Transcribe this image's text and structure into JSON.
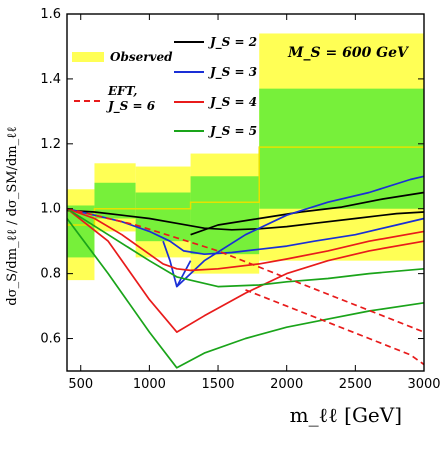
{
  "chart_data": {
    "type": "line",
    "title": "",
    "annotation": "M_S = 600 GeV",
    "xlabel": "m_ℓℓ [GeV]",
    "ylabel": "dσ_S/dm_ℓℓ / dσ_SM/dm_ℓℓ",
    "xlim": [
      400,
      3000
    ],
    "ylim": [
      0.5,
      1.6
    ],
    "xticks": [
      500,
      1000,
      1500,
      2000,
      2500,
      3000
    ],
    "yticks": [
      0.6,
      0.8,
      1.0,
      1.2,
      1.4,
      1.6
    ],
    "grid": false,
    "legend_position": "top",
    "colors": {
      "observed_outer": "#ffff55",
      "observed_inner": "#77f03a",
      "observed_line": "#e6e200",
      "J2": "#000000",
      "J3": "#1a2fd6",
      "J4": "#e81b1b",
      "J5": "#1aa41a",
      "EFT": "#e81b1b"
    },
    "legend": [
      {
        "key": "observed",
        "label": "Observed"
      },
      {
        "key": "EFT",
        "label": "EFT, J_S = 6"
      },
      {
        "key": "J2",
        "label": "J_S = 2"
      },
      {
        "key": "J3",
        "label": "J_S = 3"
      },
      {
        "key": "J4",
        "label": "J_S = 4"
      },
      {
        "key": "J5",
        "label": "J_S = 5"
      }
    ],
    "observed_bands": [
      {
        "x0": 400,
        "x1": 600,
        "outer": [
          0.78,
          1.06
        ],
        "inner": [
          0.85,
          1.01
        ],
        "central": 0.95
      },
      {
        "x0": 600,
        "x1": 900,
        "outer": [
          0.93,
          1.14
        ],
        "inner": [
          0.97,
          1.08
        ],
        "central": 1.0
      },
      {
        "x0": 900,
        "x1": 1300,
        "outer": [
          0.85,
          1.13
        ],
        "inner": [
          0.9,
          1.05
        ],
        "central": 1.0
      },
      {
        "x0": 1300,
        "x1": 1800,
        "outer": [
          0.8,
          1.17
        ],
        "inner": [
          0.86,
          1.1
        ],
        "central": 1.02
      },
      {
        "x0": 1800,
        "x1": 3000,
        "outer": [
          0.84,
          1.54
        ],
        "inner": [
          1.0,
          1.37
        ],
        "central": 1.19
      }
    ],
    "series": [
      {
        "key": "J2",
        "name": "J_S = 2",
        "style": "solid",
        "x": [
          400,
          600,
          800,
          1000,
          1200,
          1400,
          1600,
          1800,
          2000,
          2200,
          2500,
          2800,
          3000
        ],
        "y": [
          0.995,
          0.99,
          0.98,
          0.97,
          0.955,
          0.94,
          0.935,
          0.938,
          0.945,
          0.955,
          0.97,
          0.985,
          0.99
        ]
      },
      {
        "key": "J2",
        "name": "J_S = 2 (high-x branch)",
        "style": "solid",
        "x": [
          1300,
          1500,
          1800,
          2100,
          2400,
          2700,
          3000
        ],
        "y": [
          0.92,
          0.95,
          0.97,
          0.99,
          1.005,
          1.03,
          1.05
        ]
      },
      {
        "key": "J3",
        "name": "J_S = 3",
        "style": "solid",
        "x": [
          400,
          600,
          800,
          1000,
          1150,
          1250,
          1400,
          1600,
          1800,
          2000,
          2200,
          2500,
          2800,
          3000
        ],
        "y": [
          1.0,
          0.98,
          0.96,
          0.93,
          0.9,
          0.87,
          0.86,
          0.865,
          0.875,
          0.885,
          0.9,
          0.92,
          0.95,
          0.97
        ]
      },
      {
        "key": "J3",
        "name": "J_S = 3 (spike)",
        "style": "solid",
        "x": [
          1100,
          1150,
          1200,
          1250,
          1300
        ],
        "y": [
          0.9,
          0.84,
          0.76,
          0.8,
          0.84
        ]
      },
      {
        "key": "J3",
        "name": "J_S = 3 (rising branch)",
        "style": "solid",
        "x": [
          1200,
          1400,
          1700,
          2000,
          2300,
          2600,
          2900,
          3000
        ],
        "y": [
          0.76,
          0.84,
          0.92,
          0.98,
          1.02,
          1.05,
          1.09,
          1.1
        ]
      },
      {
        "key": "J4",
        "name": "J_S = 4",
        "style": "solid",
        "x": [
          400,
          600,
          800,
          1000,
          1100,
          1200,
          1300,
          1500,
          1800,
          2000,
          2300,
          2600,
          3000
        ],
        "y": [
          1.0,
          0.97,
          0.92,
          0.86,
          0.83,
          0.815,
          0.81,
          0.815,
          0.83,
          0.845,
          0.87,
          0.9,
          0.93
        ]
      },
      {
        "key": "J4",
        "name": "J_S = 4 (dip)",
        "style": "solid",
        "x": [
          400,
          700,
          1000,
          1200,
          1400,
          1700,
          2000,
          2300,
          2600,
          3000
        ],
        "y": [
          1.0,
          0.9,
          0.72,
          0.62,
          0.67,
          0.74,
          0.8,
          0.84,
          0.87,
          0.9
        ]
      },
      {
        "key": "J5",
        "name": "J_S = 5",
        "style": "solid",
        "x": [
          400,
          700,
          1000,
          1200,
          1500,
          1800,
          2000,
          2300,
          2600,
          3000
        ],
        "y": [
          1.0,
          0.92,
          0.84,
          0.79,
          0.76,
          0.765,
          0.775,
          0.785,
          0.8,
          0.815
        ]
      },
      {
        "key": "J5",
        "name": "J_S = 5 (dip)",
        "style": "solid",
        "x": [
          400,
          700,
          1000,
          1200,
          1400,
          1700,
          2000,
          2300,
          2600,
          3000
        ],
        "y": [
          0.97,
          0.8,
          0.62,
          0.51,
          0.555,
          0.6,
          0.635,
          0.66,
          0.685,
          0.71
        ]
      },
      {
        "key": "EFT",
        "name": "EFT, J_S = 6",
        "style": "dashed",
        "x": [
          400,
          600,
          900,
          1200,
          1500,
          1800,
          2100,
          2400,
          2700,
          3000
        ],
        "y": [
          1.0,
          0.98,
          0.95,
          0.91,
          0.87,
          0.82,
          0.77,
          0.72,
          0.67,
          0.62
        ]
      },
      {
        "key": "EFT",
        "name": "EFT, J_S = 6 (lower)",
        "style": "dashed",
        "x": [
          1700,
          2000,
          2300,
          2600,
          2900,
          3000
        ],
        "y": [
          0.75,
          0.7,
          0.65,
          0.6,
          0.55,
          0.52
        ]
      }
    ]
  }
}
